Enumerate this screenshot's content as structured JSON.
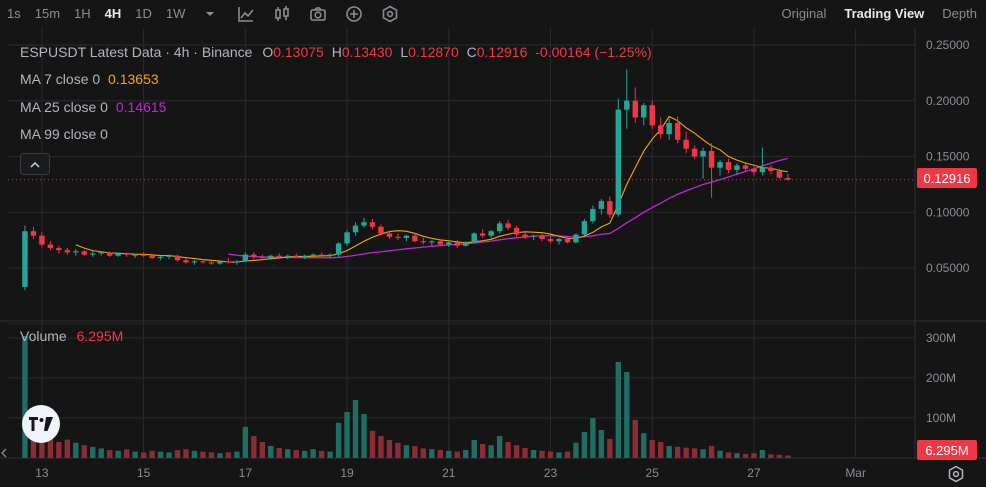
{
  "toolbar": {
    "timeframes": [
      {
        "label": "1s",
        "active": false
      },
      {
        "label": "15m",
        "active": false
      },
      {
        "label": "1H",
        "active": false
      },
      {
        "label": "4H",
        "active": true
      },
      {
        "label": "1D",
        "active": false
      },
      {
        "label": "1W",
        "active": false
      }
    ],
    "icons": [
      "chevron-down-icon",
      "chart-type-icon",
      "candles-icon",
      "camera-icon",
      "plus-circle-icon",
      "indicator-icon"
    ],
    "views": [
      {
        "label": "Original",
        "active": false
      },
      {
        "label": "Trading View",
        "active": true
      },
      {
        "label": "Depth",
        "active": false
      }
    ]
  },
  "legend": {
    "title": "ESPUSDT Latest Data · 4h · Binance",
    "o_key": "O",
    "o_val": "0.13075",
    "h_key": "H",
    "h_val": "0.13430",
    "l_key": "L",
    "l_val": "0.12870",
    "c_key": "C",
    "c_val": "0.12916",
    "change": "-0.00164 (−1.25%)",
    "ma7_label": "MA 7 close 0",
    "ma7_value": "0.13653",
    "ma25_label": "MA 25 close 0",
    "ma25_value": "0.14615",
    "ma99_label": "MA 99 close 0",
    "volume_label": "Volume",
    "volume_value": "6.295M"
  },
  "price_tag": "0.12916",
  "volume_tag": "6.295M",
  "colors": {
    "up": "#26a69a",
    "down": "#f23645",
    "ma7": "#f7a600",
    "ma25": "#c026d3",
    "grid": "#2a2b30"
  },
  "chart_data": {
    "type": "candlestick",
    "price_ticks": [
      "0.25000",
      "0.20000",
      "0.15000",
      "0.10000",
      "0.05000"
    ],
    "price_tick_values": [
      0.25,
      0.2,
      0.15,
      0.1,
      0.05
    ],
    "volume_ticks": [
      "300M",
      "200M",
      "100M"
    ],
    "volume_tick_values": [
      300,
      200,
      100
    ],
    "x_ticks": [
      "13",
      "15",
      "17",
      "19",
      "21",
      "23",
      "25",
      "27",
      "Mar"
    ],
    "x_tick_index": [
      2,
      14,
      26,
      38,
      50,
      62,
      74,
      86,
      98
    ],
    "x_range": [
      -2,
      105
    ],
    "candles": [
      [
        0.033,
        0.088,
        0.03,
        0.083,
        305
      ],
      [
        0.083,
        0.087,
        0.076,
        0.079,
        65
      ],
      [
        0.079,
        0.082,
        0.069,
        0.071,
        55
      ],
      [
        0.071,
        0.074,
        0.066,
        0.068,
        48
      ],
      [
        0.068,
        0.07,
        0.063,
        0.066,
        40
      ],
      [
        0.066,
        0.068,
        0.062,
        0.064,
        46
      ],
      [
        0.064,
        0.067,
        0.061,
        0.065,
        38
      ],
      [
        0.065,
        0.066,
        0.061,
        0.062,
        32
      ],
      [
        0.062,
        0.065,
        0.06,
        0.063,
        28
      ],
      [
        0.063,
        0.065,
        0.061,
        0.064,
        24
      ],
      [
        0.064,
        0.065,
        0.06,
        0.061,
        20
      ],
      [
        0.061,
        0.064,
        0.06,
        0.063,
        18
      ],
      [
        0.063,
        0.064,
        0.06,
        0.062,
        22
      ],
      [
        0.062,
        0.063,
        0.059,
        0.062,
        16
      ],
      [
        0.062,
        0.064,
        0.06,
        0.061,
        14
      ],
      [
        0.061,
        0.063,
        0.058,
        0.059,
        18
      ],
      [
        0.059,
        0.061,
        0.057,
        0.06,
        16
      ],
      [
        0.06,
        0.062,
        0.058,
        0.061,
        14
      ],
      [
        0.061,
        0.062,
        0.056,
        0.057,
        20
      ],
      [
        0.057,
        0.059,
        0.054,
        0.055,
        22
      ],
      [
        0.055,
        0.057,
        0.053,
        0.056,
        18
      ],
      [
        0.056,
        0.058,
        0.054,
        0.055,
        16
      ],
      [
        0.055,
        0.057,
        0.053,
        0.054,
        14
      ],
      [
        0.054,
        0.057,
        0.053,
        0.056,
        12
      ],
      [
        0.056,
        0.059,
        0.054,
        0.055,
        14
      ],
      [
        0.055,
        0.057,
        0.053,
        0.056,
        16
      ],
      [
        0.056,
        0.064,
        0.055,
        0.062,
        78
      ],
      [
        0.062,
        0.064,
        0.058,
        0.06,
        55
      ],
      [
        0.06,
        0.062,
        0.057,
        0.059,
        40
      ],
      [
        0.059,
        0.062,
        0.057,
        0.061,
        30
      ],
      [
        0.061,
        0.063,
        0.058,
        0.06,
        25
      ],
      [
        0.06,
        0.062,
        0.058,
        0.061,
        22
      ],
      [
        0.061,
        0.063,
        0.059,
        0.06,
        20
      ],
      [
        0.06,
        0.062,
        0.058,
        0.061,
        18
      ],
      [
        0.061,
        0.063,
        0.059,
        0.062,
        22
      ],
      [
        0.062,
        0.064,
        0.06,
        0.061,
        18
      ],
      [
        0.061,
        0.063,
        0.059,
        0.062,
        16
      ],
      [
        0.062,
        0.073,
        0.06,
        0.072,
        88
      ],
      [
        0.072,
        0.084,
        0.07,
        0.082,
        115
      ],
      [
        0.082,
        0.091,
        0.079,
        0.088,
        145
      ],
      [
        0.088,
        0.095,
        0.086,
        0.091,
        110
      ],
      [
        0.091,
        0.094,
        0.085,
        0.087,
        68
      ],
      [
        0.087,
        0.089,
        0.079,
        0.081,
        55
      ],
      [
        0.081,
        0.083,
        0.076,
        0.078,
        45
      ],
      [
        0.078,
        0.081,
        0.075,
        0.077,
        38
      ],
      [
        0.077,
        0.08,
        0.074,
        0.079,
        32
      ],
      [
        0.079,
        0.081,
        0.073,
        0.074,
        30
      ],
      [
        0.074,
        0.077,
        0.071,
        0.073,
        24
      ],
      [
        0.073,
        0.075,
        0.07,
        0.074,
        22
      ],
      [
        0.074,
        0.076,
        0.07,
        0.071,
        20
      ],
      [
        0.071,
        0.074,
        0.069,
        0.073,
        18
      ],
      [
        0.073,
        0.075,
        0.068,
        0.07,
        16
      ],
      [
        0.07,
        0.074,
        0.069,
        0.073,
        20
      ],
      [
        0.073,
        0.082,
        0.072,
        0.081,
        45
      ],
      [
        0.081,
        0.085,
        0.077,
        0.079,
        35
      ],
      [
        0.079,
        0.084,
        0.077,
        0.083,
        32
      ],
      [
        0.083,
        0.092,
        0.081,
        0.09,
        55
      ],
      [
        0.09,
        0.093,
        0.084,
        0.086,
        40
      ],
      [
        0.086,
        0.088,
        0.078,
        0.08,
        32
      ],
      [
        0.08,
        0.082,
        0.076,
        0.078,
        25
      ],
      [
        0.078,
        0.08,
        0.075,
        0.079,
        20
      ],
      [
        0.079,
        0.081,
        0.074,
        0.076,
        18
      ],
      [
        0.076,
        0.078,
        0.072,
        0.074,
        16
      ],
      [
        0.074,
        0.077,
        0.071,
        0.076,
        14
      ],
      [
        0.076,
        0.078,
        0.072,
        0.073,
        16
      ],
      [
        0.073,
        0.081,
        0.072,
        0.08,
        38
      ],
      [
        0.08,
        0.094,
        0.079,
        0.092,
        65
      ],
      [
        0.092,
        0.106,
        0.09,
        0.103,
        100
      ],
      [
        0.103,
        0.112,
        0.098,
        0.11,
        70
      ],
      [
        0.11,
        0.114,
        0.095,
        0.098,
        48
      ],
      [
        0.098,
        0.202,
        0.096,
        0.192,
        240
      ],
      [
        0.192,
        0.228,
        0.175,
        0.2,
        215
      ],
      [
        0.2,
        0.212,
        0.18,
        0.185,
        95
      ],
      [
        0.185,
        0.198,
        0.178,
        0.196,
        62
      ],
      [
        0.196,
        0.2,
        0.175,
        0.178,
        45
      ],
      [
        0.178,
        0.185,
        0.166,
        0.17,
        40
      ],
      [
        0.17,
        0.184,
        0.165,
        0.18,
        30
      ],
      [
        0.18,
        0.186,
        0.162,
        0.165,
        28
      ],
      [
        0.165,
        0.172,
        0.153,
        0.157,
        26
      ],
      [
        0.157,
        0.16,
        0.148,
        0.15,
        24
      ],
      [
        0.15,
        0.158,
        0.13,
        0.155,
        22
      ],
      [
        0.155,
        0.162,
        0.113,
        0.14,
        30
      ],
      [
        0.14,
        0.147,
        0.133,
        0.145,
        18
      ],
      [
        0.145,
        0.148,
        0.135,
        0.138,
        14
      ],
      [
        0.138,
        0.144,
        0.134,
        0.142,
        12
      ],
      [
        0.142,
        0.145,
        0.136,
        0.139,
        10
      ],
      [
        0.139,
        0.141,
        0.133,
        0.136,
        12
      ],
      [
        0.136,
        0.158,
        0.133,
        0.14,
        20
      ],
      [
        0.14,
        0.142,
        0.134,
        0.137,
        9
      ],
      [
        0.137,
        0.139,
        0.13,
        0.131,
        8
      ],
      [
        0.13075,
        0.1343,
        0.1287,
        0.12916,
        6.295
      ]
    ]
  }
}
